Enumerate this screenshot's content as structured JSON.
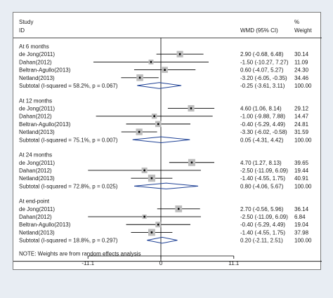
{
  "chart_data": {
    "type": "forest",
    "header": {
      "study": "Study",
      "id": "ID",
      "effect": "WMD (95% CI)",
      "pct": "%",
      "weight": "Weight"
    },
    "xlim": [
      -14,
      14
    ],
    "ticks": [
      {
        "value": -11.1,
        "label": "-11.1"
      },
      {
        "value": 0,
        "label": "0"
      },
      {
        "value": 11.1,
        "label": "11.1"
      }
    ],
    "groups": [
      {
        "title": "At 6 months",
        "studies": [
          {
            "name": "de Jong(2011)",
            "est": 2.9,
            "lo": -0.68,
            "hi": 6.48,
            "ci_text": "2.90 (-0.68, 6.48)",
            "weight": "30.14",
            "weight_value": 30.14
          },
          {
            "name": "Dahan(2012)",
            "est": -1.5,
            "lo": -10.27,
            "hi": 7.27,
            "ci_text": "-1.50 (-10.27, 7.27)",
            "weight": "11.09",
            "weight_value": 11.09
          },
          {
            "name": "Beltran-Agullo(2013)",
            "est": 0.6,
            "lo": -4.07,
            "hi": 5.27,
            "ci_text": "0.60 (-4.07, 5.27)",
            "weight": "24.30",
            "weight_value": 24.3
          },
          {
            "name": "Netland(2013)",
            "est": -3.2,
            "lo": -6.05,
            "hi": -0.35,
            "ci_text": "-3.20 (-6.05, -0.35)",
            "weight": "34.46",
            "weight_value": 34.46
          }
        ],
        "subtotal": {
          "label": "Subtotal  (I-squared = 58.2%, p = 0.067)",
          "est": -0.25,
          "lo": -3.61,
          "hi": 3.11,
          "ci_text": "-0.25 (-3.61, 3.11)",
          "weight": "100.00"
        }
      },
      {
        "title": "At 12 months",
        "studies": [
          {
            "name": "de Jong(2011)",
            "est": 4.6,
            "lo": 1.06,
            "hi": 8.14,
            "ci_text": "4.60 (1.06, 8.14)",
            "weight": "29.12",
            "weight_value": 29.12
          },
          {
            "name": "Dahan(2012)",
            "est": -1.0,
            "lo": -9.88,
            "hi": 7.88,
            "ci_text": "-1.00 (-9.88, 7.88)",
            "weight": "14.47",
            "weight_value": 14.47
          },
          {
            "name": "Beltran-Agullo(2013)",
            "est": -0.4,
            "lo": -5.29,
            "hi": 4.49,
            "ci_text": "-0.40 (-5.29, 4.49)",
            "weight": "24.81",
            "weight_value": 24.81
          },
          {
            "name": "Netland(2013)",
            "est": -3.3,
            "lo": -6.02,
            "hi": -0.58,
            "ci_text": "-3.30 (-6.02, -0.58)",
            "weight": "31.59",
            "weight_value": 31.59
          }
        ],
        "subtotal": {
          "label": "Subtotal  (I-squared = 75.1%, p = 0.007)",
          "est": 0.05,
          "lo": -4.31,
          "hi": 4.42,
          "ci_text": "0.05 (-4.31, 4.42)",
          "weight": "100.00"
        }
      },
      {
        "title": "At 24 months",
        "studies": [
          {
            "name": "de Jong(2011)",
            "est": 4.7,
            "lo": 1.27,
            "hi": 8.13,
            "ci_text": "4.70 (1.27, 8.13)",
            "weight": "39.65",
            "weight_value": 39.65
          },
          {
            "name": "Dahan(2012)",
            "est": -2.5,
            "lo": -11.09,
            "hi": 6.09,
            "ci_text": "-2.50 (-11.09, 6.09)",
            "weight": "19.44",
            "weight_value": 19.44
          },
          {
            "name": "Netland(2013)",
            "est": -1.4,
            "lo": -4.55,
            "hi": 1.75,
            "ci_text": "-1.40 (-4.55, 1.75)",
            "weight": "40.91",
            "weight_value": 40.91
          }
        ],
        "subtotal": {
          "label": "Subtotal  (I-squared = 72.8%, p = 0.025)",
          "est": 0.8,
          "lo": -4.06,
          "hi": 5.67,
          "ci_text": "0.80 (-4.06, 5.67)",
          "weight": "100.00"
        }
      },
      {
        "title": "At end-point",
        "studies": [
          {
            "name": "de Jong(2011)",
            "est": 2.7,
            "lo": -0.56,
            "hi": 5.96,
            "ci_text": "2.70 (-0.56, 5.96)",
            "weight": "36.14",
            "weight_value": 36.14
          },
          {
            "name": "Dahan(2012)",
            "est": -2.5,
            "lo": -11.09,
            "hi": 6.09,
            "ci_text": "-2.50 (-11.09, 6.09)",
            "weight": "6.84",
            "weight_value": 6.84
          },
          {
            "name": "Beltran-Agullo(2013)",
            "est": -0.4,
            "lo": -5.29,
            "hi": 4.49,
            "ci_text": "-0.40 (-5.29, 4.49)",
            "weight": "19.04",
            "weight_value": 19.04
          },
          {
            "name": "Netland(2013)",
            "est": -1.4,
            "lo": -4.55,
            "hi": 1.75,
            "ci_text": "-1.40 (-4.55, 1.75)",
            "weight": "37.98",
            "weight_value": 37.98
          }
        ],
        "subtotal": {
          "label": "Subtotal  (I-squared = 18.8%, p = 0.297)",
          "est": 0.2,
          "lo": -2.11,
          "hi": 2.51,
          "ci_text": "0.20 (-2.11, 2.51)",
          "weight": "100.00"
        }
      }
    ],
    "note": "NOTE: Weights are from random effects analysis",
    "colors": {
      "diamond": "#1c3f94",
      "box": "#bdbdbd",
      "line": "#000000",
      "frame_bg": "#e8edf3"
    }
  }
}
